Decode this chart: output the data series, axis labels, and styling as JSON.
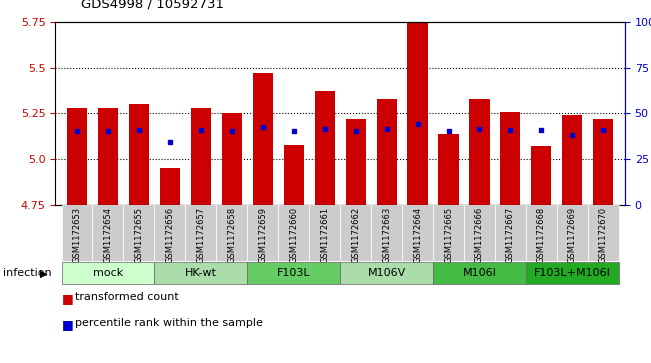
{
  "title": "GDS4998 / 10592731",
  "samples": [
    "GSM1172653",
    "GSM1172654",
    "GSM1172655",
    "GSM1172656",
    "GSM1172657",
    "GSM1172658",
    "GSM1172659",
    "GSM1172660",
    "GSM1172661",
    "GSM1172662",
    "GSM1172663",
    "GSM1172664",
    "GSM1172665",
    "GSM1172666",
    "GSM1172667",
    "GSM1172668",
    "GSM1172669",
    "GSM1172670"
  ],
  "bar_values": [
    5.28,
    5.28,
    5.3,
    4.95,
    5.28,
    5.25,
    5.47,
    5.08,
    5.37,
    5.22,
    5.33,
    5.75,
    5.14,
    5.33,
    5.26,
    5.07,
    5.24,
    5.22
  ],
  "percentile_values": [
    5.155,
    5.155,
    5.16,
    5.095,
    5.16,
    5.155,
    5.175,
    5.155,
    5.165,
    5.155,
    5.165,
    5.195,
    5.155,
    5.165,
    5.16,
    5.16,
    5.135,
    5.16
  ],
  "ymin": 4.75,
  "ymax": 5.75,
  "yticks_left": [
    4.75,
    5.0,
    5.25,
    5.5,
    5.75
  ],
  "yticks_right": [
    0,
    25,
    50,
    75,
    100
  ],
  "bar_color": "#cc0000",
  "dot_color": "#0000cc",
  "groups": [
    {
      "label": "mock",
      "start": 0,
      "end": 3,
      "color": "#ccffcc"
    },
    {
      "label": "HK-wt",
      "start": 3,
      "end": 6,
      "color": "#aaddaa"
    },
    {
      "label": "F103L",
      "start": 6,
      "end": 9,
      "color": "#66cc66"
    },
    {
      "label": "M106V",
      "start": 9,
      "end": 12,
      "color": "#aaddaa"
    },
    {
      "label": "M106I",
      "start": 12,
      "end": 15,
      "color": "#44bb44"
    },
    {
      "label": "F103L+M106I",
      "start": 15,
      "end": 18,
      "color": "#22aa22"
    }
  ],
  "infection_label": "infection",
  "legend1": "transformed count",
  "legend2": "percentile rank within the sample",
  "title_color": "#000000",
  "left_tick_color": "#cc0000",
  "right_tick_color": "#0000cc"
}
